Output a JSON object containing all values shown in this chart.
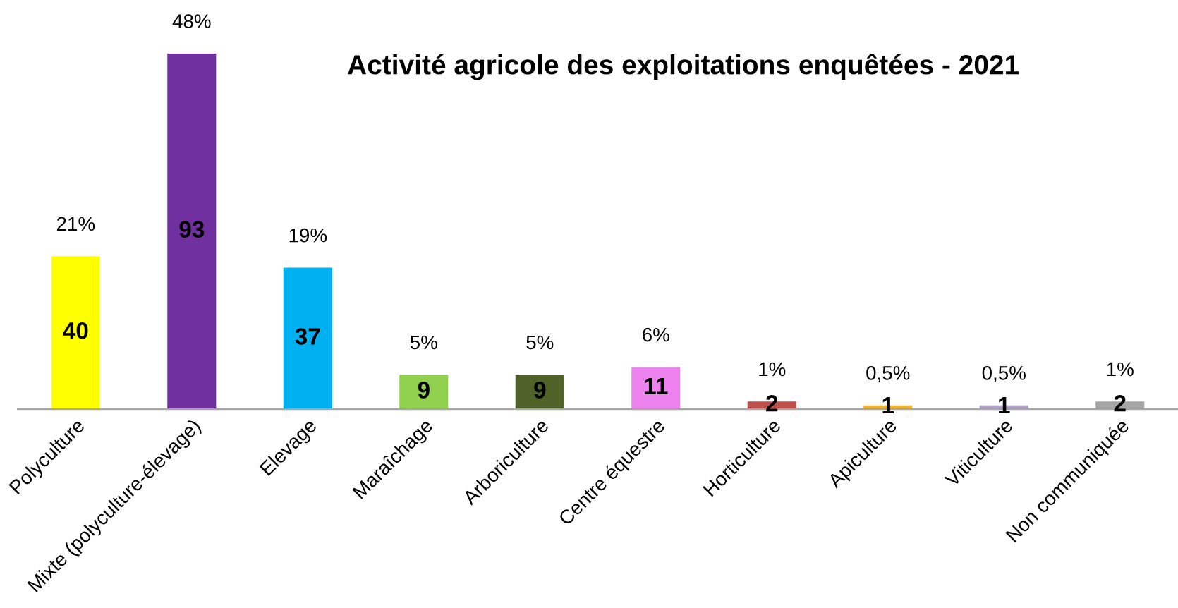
{
  "chart_data": {
    "type": "bar",
    "title": "Activité agricole des exploitations enquêtées - 2021",
    "categories": [
      "Polyculture",
      "Mixte (polyculture-élevage)",
      "Elevage",
      "Maraîchage",
      "Arboriculture",
      "Centre équestre",
      "Horticulture",
      "Apiculture",
      "Viticulture",
      "Non communiquée"
    ],
    "values": [
      40,
      93,
      37,
      9,
      9,
      11,
      2,
      1,
      1,
      2
    ],
    "colors": [
      "#ffff00",
      "#7030a0",
      "#00b0f0",
      "#92d050",
      "#4f6228",
      "#ee82ee",
      "#c0504d",
      "#f0b323",
      "#b3a2c7",
      "#a6a6a6"
    ],
    "data_labels": true,
    "tick_labels": "x",
    "grid": false,
    "legend": false,
    "annotations": [
      {
        "text": "21%",
        "x": "Polyculture",
        "y": 40
      },
      {
        "text": "48%",
        "x": "Mixte (polyculture-élevage)",
        "y": 93
      },
      {
        "text": "19%",
        "x": "Elevage",
        "y": 37
      },
      {
        "text": "5%",
        "x": "Maraîchage",
        "y": 9
      },
      {
        "text": "5%",
        "x": "Arboriculture",
        "y": 9
      },
      {
        "text": "6%",
        "x": "Centre équestre",
        "y": 11
      },
      {
        "text": "1%",
        "x": "Horticulture",
        "y": 2
      },
      {
        "text": "0,5%",
        "x": "Apiculture",
        "y": 1
      },
      {
        "text": "0,5%",
        "x": "Viticulture",
        "y": 1
      },
      {
        "text": "1%",
        "x": "Non communiquée",
        "y": 2
      }
    ]
  }
}
